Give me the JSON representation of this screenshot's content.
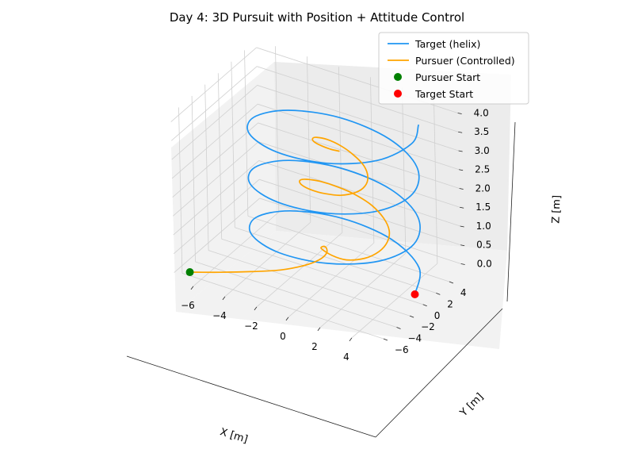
{
  "chart_data": {
    "type": "line",
    "projection": "3d",
    "title": "Day 4: 3D Pursuit with Position + Attitude Control",
    "xlabel": "X [m]",
    "ylabel": "Y [m]",
    "zlabel": "Z [m]",
    "xlim": [
      -7.2,
      5.5
    ],
    "ylim": [
      -7.2,
      5.8
    ],
    "zlim": [
      -0.2,
      4.2
    ],
    "x_ticks": [
      -6,
      -4,
      -2,
      0,
      2,
      4
    ],
    "y_ticks": [
      -6,
      -4,
      -2,
      0,
      2,
      4
    ],
    "z_ticks": [
      0.0,
      0.5,
      1.0,
      1.5,
      2.0,
      2.5,
      3.0,
      3.5,
      4.0
    ],
    "x_tick_labels": [
      "−6",
      "−4",
      "−2",
      "0",
      "2",
      "4"
    ],
    "y_tick_labels": [
      "−6",
      "−4",
      "−2",
      "0",
      "2",
      "4"
    ],
    "z_tick_labels": [
      "0.0",
      "0.5",
      "1.0",
      "1.5",
      "2.0",
      "2.5",
      "3.0",
      "3.5",
      "4.0"
    ],
    "grid": true,
    "legend_position": "top-right",
    "series": [
      {
        "name": "Target (helix)",
        "kind": "line",
        "color": "#2196f3",
        "points": [
          [
            5,
            0,
            0
          ],
          [
            4.05,
            2.94,
            0.13
          ],
          [
            1.55,
            4.76,
            0.27
          ],
          [
            -1.55,
            4.76,
            0.4
          ],
          [
            -4.05,
            2.94,
            0.53
          ],
          [
            -5,
            0,
            0.67
          ],
          [
            -4.05,
            -2.94,
            0.8
          ],
          [
            -1.55,
            -4.76,
            0.93
          ],
          [
            1.55,
            -4.76,
            1.07
          ],
          [
            4.05,
            -2.94,
            1.2
          ],
          [
            5,
            0,
            1.33
          ],
          [
            4.05,
            2.94,
            1.47
          ],
          [
            1.55,
            4.76,
            1.6
          ],
          [
            -1.55,
            4.76,
            1.73
          ],
          [
            -4.05,
            2.94,
            1.87
          ],
          [
            -5,
            0,
            2.0
          ],
          [
            -4.05,
            -2.94,
            2.13
          ],
          [
            -1.55,
            -4.76,
            2.27
          ],
          [
            1.55,
            -4.76,
            2.4
          ],
          [
            4.05,
            -2.94,
            2.53
          ],
          [
            5,
            0,
            2.67
          ],
          [
            4.05,
            2.94,
            2.8
          ],
          [
            1.55,
            4.76,
            2.93
          ],
          [
            -1.55,
            4.76,
            3.07
          ],
          [
            -4.05,
            2.94,
            3.2
          ],
          [
            -5,
            0,
            3.33
          ],
          [
            -4.05,
            -2.94,
            3.47
          ],
          [
            -1.55,
            -4.76,
            3.6
          ],
          [
            1.55,
            -4.76,
            3.73
          ],
          [
            4.05,
            -2.94,
            3.87
          ],
          [
            5,
            0,
            4.0
          ],
          [
            4.6,
            2.0,
            4.13
          ]
        ]
      },
      {
        "name": "Pursuer (Controlled)",
        "kind": "line",
        "color": "#ffa500",
        "points": [
          [
            -6.5,
            -6.5,
            0
          ],
          [
            -5.0,
            -5.5,
            0.05
          ],
          [
            -3.5,
            -4.5,
            0.12
          ],
          [
            -2.0,
            -3.5,
            0.22
          ],
          [
            -0.9,
            -2.5,
            0.34
          ],
          [
            -0.3,
            -1.7,
            0.45
          ],
          [
            -0.1,
            -1.1,
            0.55
          ],
          [
            -0.2,
            -0.8,
            0.62
          ],
          [
            -0.4,
            -0.7,
            0.64
          ],
          [
            -0.5,
            -0.9,
            0.6
          ],
          [
            0.3,
            -1.2,
            0.57
          ],
          [
            1.3,
            -1.4,
            0.62
          ],
          [
            2.3,
            -1.0,
            0.74
          ],
          [
            2.9,
            -0.3,
            0.89
          ],
          [
            3.1,
            0.5,
            1.05
          ],
          [
            2.9,
            1.3,
            1.21
          ],
          [
            2.3,
            1.9,
            1.37
          ],
          [
            1.4,
            2.3,
            1.52
          ],
          [
            0.4,
            2.3,
            1.66
          ],
          [
            -0.6,
            2.0,
            1.78
          ],
          [
            -1.5,
            1.5,
            1.88
          ],
          [
            -2.1,
            0.8,
            1.96
          ],
          [
            -2.2,
            0.1,
            2.02
          ],
          [
            -1.8,
            -0.6,
            2.07
          ],
          [
            -1.0,
            -1.0,
            2.1
          ],
          [
            -0.1,
            -1.1,
            2.14
          ],
          [
            0.8,
            -0.9,
            2.19
          ],
          [
            1.5,
            -0.3,
            2.27
          ],
          [
            1.8,
            0.4,
            2.37
          ],
          [
            1.7,
            1.1,
            2.5
          ],
          [
            1.2,
            1.7,
            2.64
          ],
          [
            0.4,
            2.0,
            2.78
          ],
          [
            -0.4,
            2.0,
            2.91
          ],
          [
            -1.1,
            1.7,
            3.02
          ],
          [
            -1.5,
            1.1,
            3.11
          ],
          [
            -1.5,
            0.5,
            3.17
          ],
          [
            -1.2,
            0.0,
            3.2
          ],
          [
            -0.6,
            -0.3,
            3.22
          ],
          [
            0.0,
            -0.4,
            3.23
          ],
          [
            0.5,
            -0.3,
            3.23
          ]
        ]
      },
      {
        "name": "Pursuer Start",
        "kind": "scatter",
        "color": "#008000",
        "points": [
          [
            -6.5,
            -6.5,
            0
          ]
        ]
      },
      {
        "name": "Target Start",
        "kind": "scatter",
        "color": "#ff0000",
        "points": [
          [
            5,
            0,
            0
          ]
        ]
      }
    ]
  }
}
